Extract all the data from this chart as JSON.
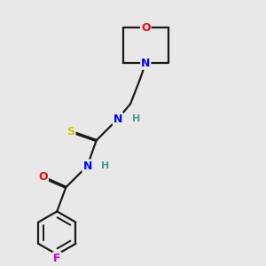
{
  "background_color": "#e8e8e8",
  "bond_color": "#1a1a1a",
  "atom_colors": {
    "O": "#ff0000",
    "N": "#0000ff",
    "S": "#cccc00",
    "F": "#cc00cc",
    "C": "#1a1a1a",
    "H": "#4a9a9a"
  },
  "bond_width": 1.6,
  "figsize": [
    3.0,
    3.0
  ],
  "dpi": 100
}
